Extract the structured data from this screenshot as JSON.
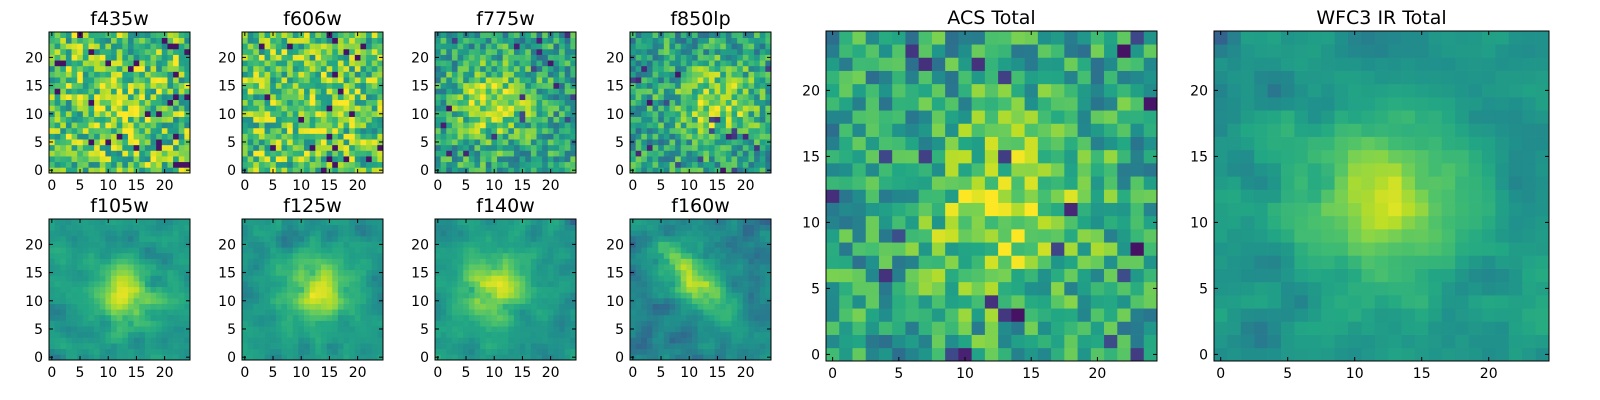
{
  "chart_data": [
    {
      "type": "heatmap",
      "title": "f435w",
      "nx": 25,
      "ny": 25,
      "xlim": [
        -0.5,
        24.5
      ],
      "ylim": [
        -0.5,
        24.5
      ],
      "xticks": [
        0,
        5,
        10,
        15,
        20
      ],
      "yticks": [
        0,
        5,
        10,
        15,
        20
      ],
      "colormap": "viridis",
      "texture": "noise",
      "center": [
        12,
        12
      ]
    },
    {
      "type": "heatmap",
      "title": "f606w",
      "nx": 25,
      "ny": 25,
      "xlim": [
        -0.5,
        24.5
      ],
      "ylim": [
        -0.5,
        24.5
      ],
      "xticks": [
        0,
        5,
        10,
        15,
        20
      ],
      "yticks": [
        0,
        5,
        10,
        15,
        20
      ],
      "colormap": "viridis",
      "texture": "noise",
      "center": [
        12,
        11
      ]
    },
    {
      "type": "heatmap",
      "title": "f775w",
      "nx": 25,
      "ny": 25,
      "xlim": [
        -0.5,
        24.5
      ],
      "ylim": [
        -0.5,
        24.5
      ],
      "xticks": [
        0,
        5,
        10,
        15,
        20
      ],
      "yticks": [
        0,
        5,
        10,
        15,
        20
      ],
      "colormap": "viridis",
      "texture": "faint-source",
      "center": [
        10,
        12
      ]
    },
    {
      "type": "heatmap",
      "title": "f850lp",
      "nx": 25,
      "ny": 25,
      "xlim": [
        -0.5,
        24.5
      ],
      "ylim": [
        -0.5,
        24.5
      ],
      "xticks": [
        0,
        5,
        10,
        15,
        20
      ],
      "yticks": [
        0,
        5,
        10,
        15,
        20
      ],
      "colormap": "viridis",
      "texture": "faint-source",
      "center": [
        15,
        12
      ]
    },
    {
      "type": "heatmap",
      "title": "f105w",
      "nx": 25,
      "ny": 25,
      "xlim": [
        -0.5,
        24.5
      ],
      "ylim": [
        -0.5,
        24.5
      ],
      "xticks": [
        0,
        5,
        10,
        15,
        20
      ],
      "yticks": [
        0,
        5,
        10,
        15,
        20
      ],
      "colormap": "viridis",
      "texture": "smooth-source",
      "center": [
        13,
        11
      ]
    },
    {
      "type": "heatmap",
      "title": "f125w",
      "nx": 25,
      "ny": 25,
      "xlim": [
        -0.5,
        24.5
      ],
      "ylim": [
        -0.5,
        24.5
      ],
      "xticks": [
        0,
        5,
        10,
        15,
        20
      ],
      "yticks": [
        0,
        5,
        10,
        15,
        20
      ],
      "colormap": "viridis",
      "texture": "smooth-source",
      "center": [
        13,
        12
      ]
    },
    {
      "type": "heatmap",
      "title": "f140w",
      "nx": 25,
      "ny": 25,
      "xlim": [
        -0.5,
        24.5
      ],
      "ylim": [
        -0.5,
        24.5
      ],
      "xticks": [
        0,
        5,
        10,
        15,
        20
      ],
      "yticks": [
        0,
        5,
        10,
        15,
        20
      ],
      "colormap": "viridis",
      "texture": "smooth-source",
      "center": [
        10,
        12
      ]
    },
    {
      "type": "heatmap",
      "title": "f160w",
      "nx": 25,
      "ny": 25,
      "xlim": [
        -0.5,
        24.5
      ],
      "ylim": [
        -0.5,
        24.5
      ],
      "xticks": [
        0,
        5,
        10,
        15,
        20
      ],
      "yticks": [
        0,
        5,
        10,
        15,
        20
      ],
      "colormap": "viridis",
      "texture": "diagonal-source",
      "center": [
        11,
        14
      ]
    },
    {
      "type": "heatmap",
      "title": "ACS Total",
      "nx": 25,
      "ny": 25,
      "xlim": [
        -0.5,
        24.5
      ],
      "ylim": [
        -0.5,
        24.5
      ],
      "xticks": [
        0,
        5,
        10,
        15,
        20
      ],
      "yticks": [
        0,
        5,
        10,
        15,
        20
      ],
      "colormap": "viridis",
      "texture": "faint-source",
      "center": [
        13,
        11
      ]
    },
    {
      "type": "heatmap",
      "title": "WFC3 IR Total",
      "nx": 25,
      "ny": 25,
      "xlim": [
        -0.5,
        24.5
      ],
      "ylim": [
        -0.5,
        24.5
      ],
      "xticks": [
        0,
        5,
        10,
        15,
        20
      ],
      "yticks": [
        0,
        5,
        10,
        15,
        20
      ],
      "colormap": "viridis",
      "texture": "smooth-source",
      "center": [
        12,
        12
      ]
    }
  ]
}
